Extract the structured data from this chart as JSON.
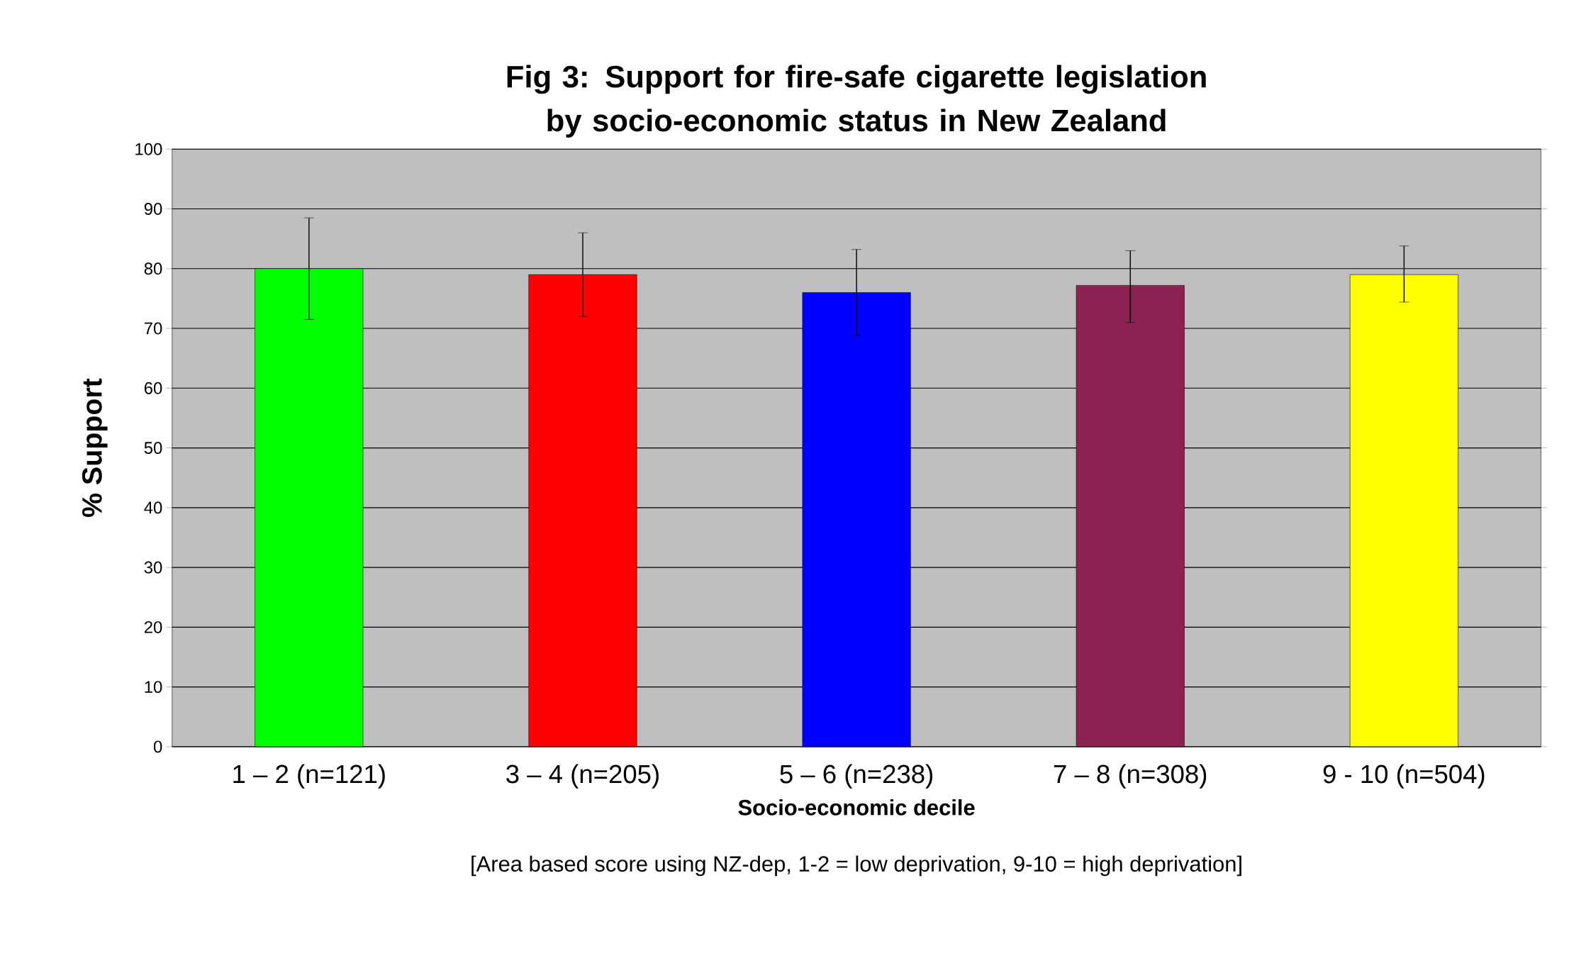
{
  "chart_data": {
    "type": "bar",
    "title": "Fig 3: Support for fire-safe cigarette legislation by socio-economic status in New Zealand",
    "xlabel": "Socio-economic decile",
    "ylabel": "% Support",
    "categories": [
      "1 – 2 (n=121)",
      "3 – 4 (n=205)",
      "5 – 6 (n=238)",
      "7 – 8 (n=308)",
      "9 - 10 (n=504)"
    ],
    "values": [
      80,
      79,
      76,
      77.2,
      79
    ],
    "errors": [
      [
        71.5,
        88.5
      ],
      [
        72,
        86
      ],
      [
        68.8,
        83.2
      ],
      [
        71,
        83
      ],
      [
        74.4,
        83.8
      ]
    ],
    "colors": [
      "#00ff00",
      "#ff0000",
      "#0000ff",
      "#8b2252",
      "#ffff00"
    ],
    "ylim": [
      0,
      100
    ],
    "yticks": [
      0,
      10,
      20,
      30,
      40,
      50,
      60,
      70,
      80,
      90,
      100
    ],
    "grid": "y",
    "annotations": [
      "[Area based score using NZ-dep, 1-2 = low deprivation, 9-10 = high deprivation]"
    ]
  }
}
